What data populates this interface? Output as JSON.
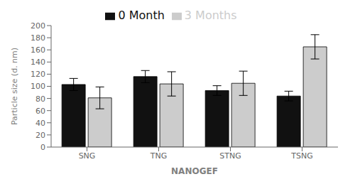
{
  "chart_data": {
    "type": "bar",
    "xlabel": "NANOGEF",
    "ylabel": "Particle size (d. nm)",
    "categories": [
      "SNG",
      "TNG",
      "STNG",
      "TSNG"
    ],
    "series": [
      {
        "name": "0 Month",
        "color": "#111111",
        "values": [
          103,
          116,
          93,
          84
        ],
        "errors": [
          10,
          10,
          8,
          8
        ]
      },
      {
        "name": "3 Months",
        "color": "#cccccc",
        "values": [
          81,
          104,
          105,
          165
        ],
        "errors": [
          18,
          20,
          20,
          20
        ]
      }
    ],
    "ylim": [
      0,
      200
    ],
    "yticks": [
      0,
      20,
      40,
      60,
      80,
      100,
      120,
      140,
      160,
      180,
      200
    ],
    "legend": "top",
    "grid": false
  }
}
